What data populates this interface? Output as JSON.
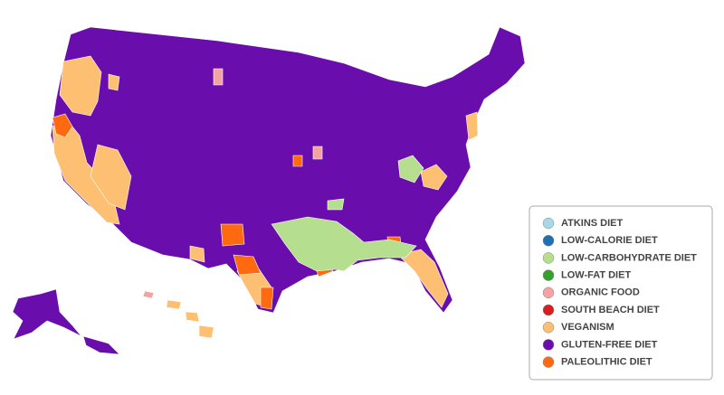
{
  "legend": {
    "items": [
      {
        "label": "ATKINS DIET",
        "color": "#a6d8e7"
      },
      {
        "label": "LOW-CALORIE DIET",
        "color": "#1f6fb4"
      },
      {
        "label": "LOW-CARBOHYDRATE DIET",
        "color": "#b5df8e"
      },
      {
        "label": "LOW-FAT DIET",
        "color": "#33a02c"
      },
      {
        "label": "ORGANIC FOOD",
        "color": "#f4a3a3"
      },
      {
        "label": "SOUTH BEACH DIET",
        "color": "#d81e1e"
      },
      {
        "label": "VEGANISM",
        "color": "#fdbf72"
      },
      {
        "label": "GLUTEN-FREE DIET",
        "color": "#6a0dad"
      },
      {
        "label": "PALEOLITHIC DIET",
        "color": "#ff6a10"
      }
    ]
  }
}
